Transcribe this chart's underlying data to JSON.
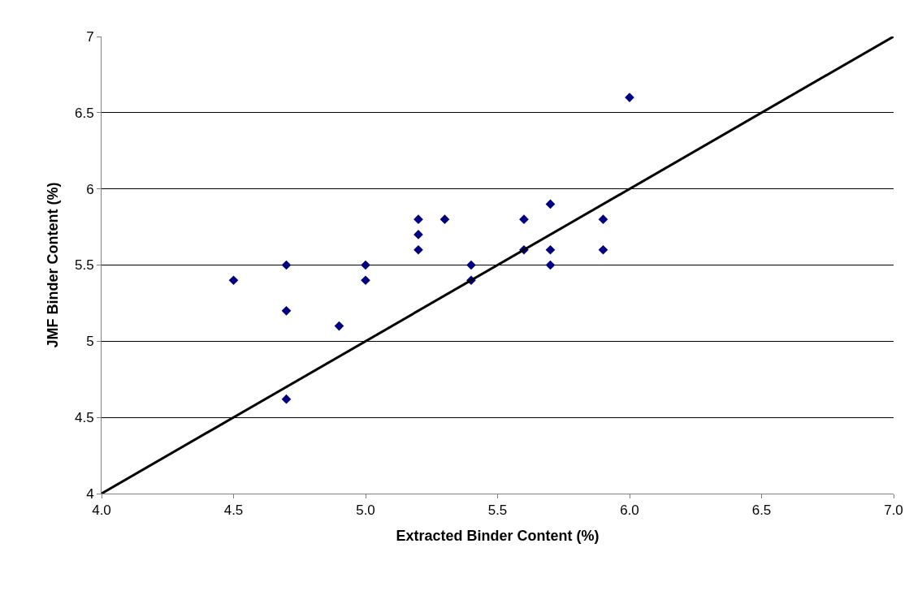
{
  "chart_data": {
    "type": "scatter",
    "xlabel": "Extracted Binder Content (%)",
    "ylabel": "JMF Binder Content (%)",
    "xlim": [
      4.0,
      7.0
    ],
    "ylim": [
      4,
      7
    ],
    "xticks": [
      {
        "value": 4.0,
        "label": "4.0"
      },
      {
        "value": 4.5,
        "label": "4.5"
      },
      {
        "value": 5.0,
        "label": "5.0"
      },
      {
        "value": 5.5,
        "label": "5.5"
      },
      {
        "value": 6.0,
        "label": "6.0"
      },
      {
        "value": 6.5,
        "label": "6.5"
      },
      {
        "value": 7.0,
        "label": "7.0"
      }
    ],
    "yticks": [
      4,
      4.5,
      5,
      5.5,
      6,
      6.5,
      7
    ],
    "grid": "y",
    "series": [
      {
        "marker": "diamond",
        "color": "#000080",
        "x": [
          4.5,
          4.7,
          4.7,
          4.7,
          4.9,
          5.0,
          5.0,
          5.2,
          5.2,
          5.2,
          5.3,
          5.4,
          5.4,
          5.6,
          5.6,
          5.7,
          5.7,
          5.7,
          5.9,
          5.9,
          6.0
        ],
        "values": [
          5.4,
          5.5,
          5.2,
          4.62,
          5.1,
          5.5,
          5.4,
          5.8,
          5.7,
          5.6,
          5.8,
          5.5,
          5.4,
          5.8,
          5.6,
          5.9,
          5.6,
          5.5,
          5.8,
          5.6,
          6.6
        ]
      },
      {
        "type": "line",
        "color": "#000000",
        "x": [
          4.0,
          7.0
        ],
        "values": [
          4,
          7
        ]
      }
    ]
  }
}
